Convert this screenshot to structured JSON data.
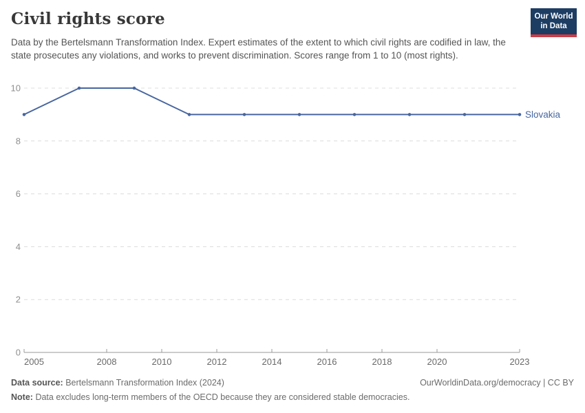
{
  "header": {
    "title": "Civil rights score",
    "subtitle": "Data by the Bertelsmann Transformation Index. Expert estimates of the extent to which civil rights are codified in law, the state prosecutes any violations, and works to prevent discrimination. Scores range from 1 to 10 (most rights).",
    "logo": {
      "line1": "Our World",
      "line2": "in Data"
    }
  },
  "chart_data": {
    "type": "line",
    "title": "Civil rights score",
    "entity_label": "Slovakia",
    "series": [
      {
        "name": "Slovakia",
        "color": "#47669f",
        "x": [
          2005,
          2007,
          2009,
          2011,
          2013,
          2015,
          2017,
          2019,
          2021,
          2023
        ],
        "values": [
          9,
          10,
          10,
          9,
          9,
          9,
          9,
          9,
          9,
          9
        ]
      }
    ],
    "x_ticks": [
      2005,
      2008,
      2010,
      2012,
      2014,
      2016,
      2018,
      2020,
      2023
    ],
    "y_ticks": [
      0,
      2,
      4,
      6,
      8,
      10
    ],
    "xlim": [
      2005,
      2023
    ],
    "ylim": [
      0,
      10
    ],
    "xlabel": "",
    "ylabel": "",
    "grid": "horizontal-dashed",
    "legend_position": "right-of-line",
    "colors": {
      "line": "#47669f",
      "gridline": "#dcdcdc",
      "axis": "#9a9a9a",
      "y_tick_label": "#8f8f8f",
      "x_tick_label": "#696969"
    }
  },
  "footer": {
    "data_source_label": "Data source:",
    "data_source_value": "Bertelsmann Transformation Index (2024)",
    "origin": "OurWorldinData.org/democracy | CC BY",
    "note_label": "Note:",
    "note_value": "Data excludes long-term members of the OECD because they are considered stable democracies."
  }
}
